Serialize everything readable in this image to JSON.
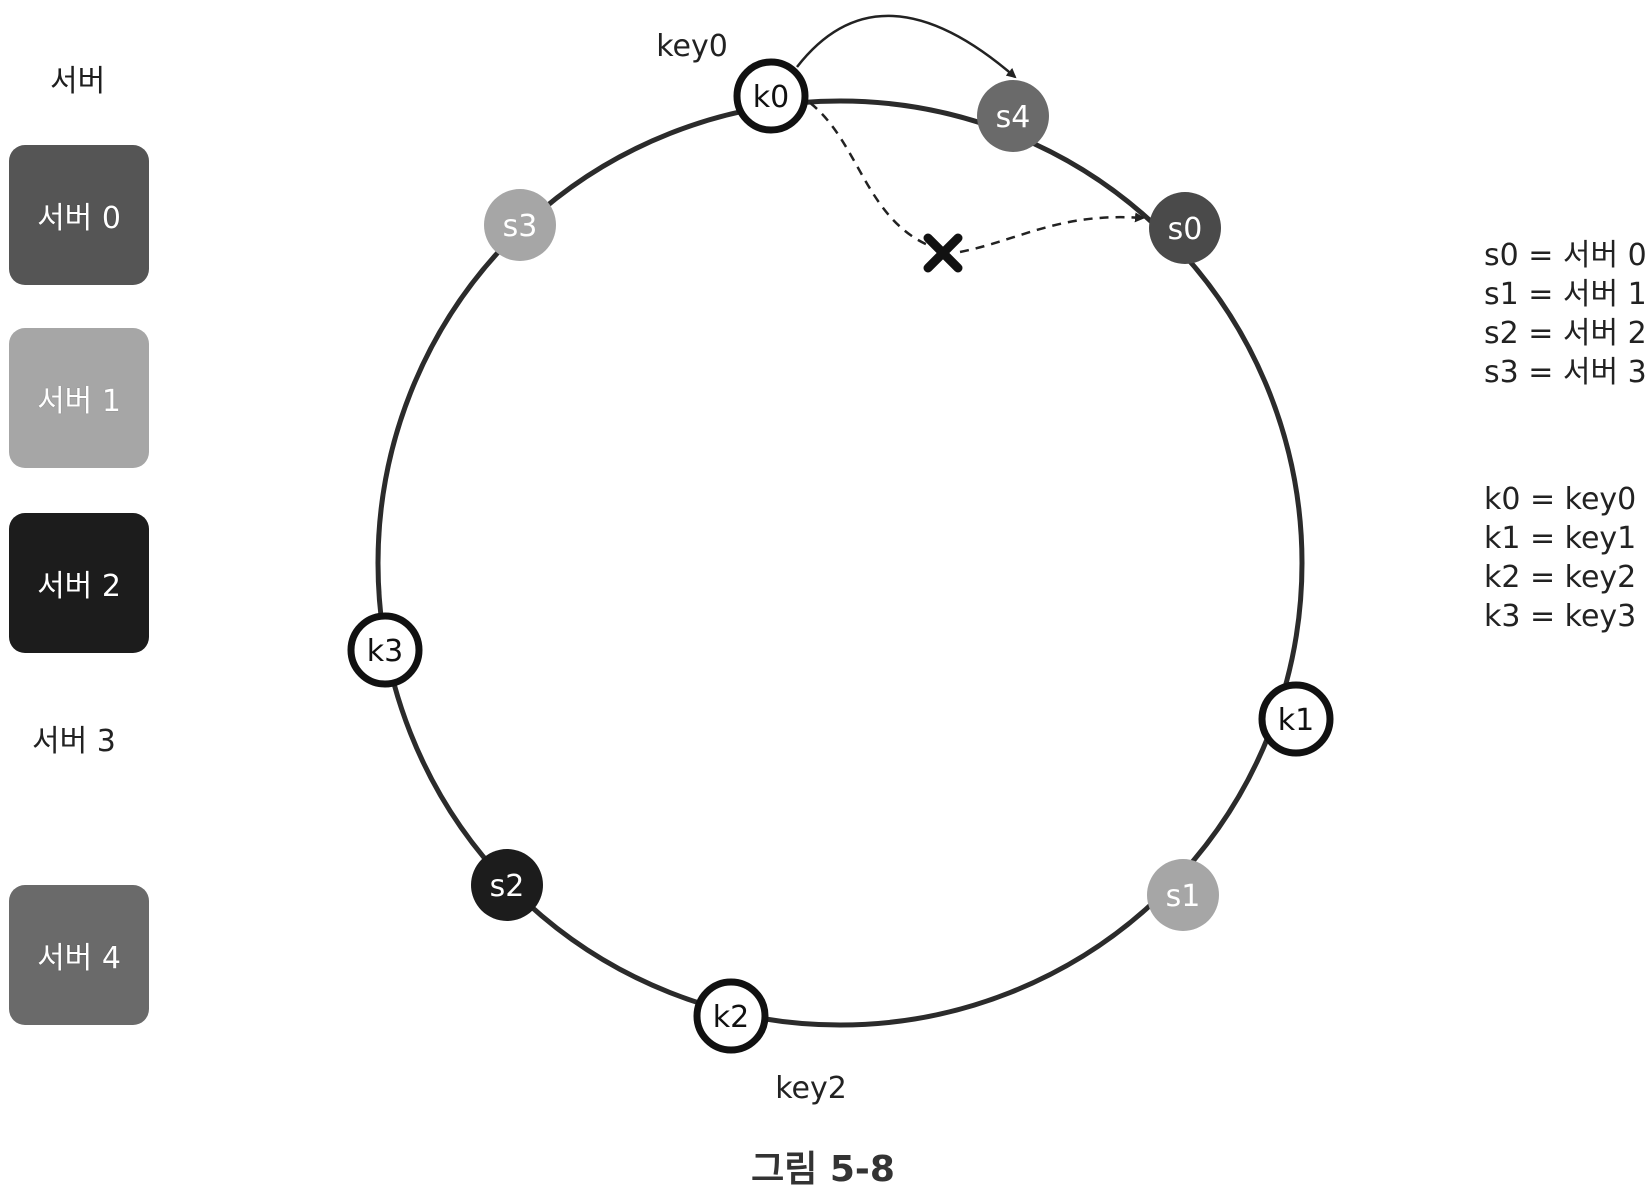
{
  "servers_title": "서버",
  "servers": [
    {
      "label": "서버 0",
      "color": "#555555",
      "shown": "box"
    },
    {
      "label": "서버 1",
      "color": "#a6a6a6",
      "shown": "box"
    },
    {
      "label": "서버 2",
      "color": "#1c1c1c",
      "shown": "box"
    },
    {
      "label": "서버 3",
      "color": "#ffffff",
      "shown": "removed"
    },
    {
      "label": "서버 4",
      "color": "#6a6a6a",
      "shown": "box"
    }
  ],
  "ring": {
    "key0_label": "key0",
    "key2_label": "key2",
    "server_nodes": [
      {
        "id": "s0",
        "label": "s0",
        "color": "#4a4a4a"
      },
      {
        "id": "s1",
        "label": "s1",
        "color": "#a6a6a6"
      },
      {
        "id": "s2",
        "label": "s2",
        "color": "#1c1c1c"
      },
      {
        "id": "s3",
        "label": "s3",
        "color": "#a6a6a6"
      },
      {
        "id": "s4",
        "label": "s4",
        "color": "#6a6a6a"
      }
    ],
    "key_nodes": [
      {
        "id": "k0",
        "label": "k0"
      },
      {
        "id": "k1",
        "label": "k1"
      },
      {
        "id": "k2",
        "label": "k2"
      },
      {
        "id": "k3",
        "label": "k3"
      }
    ],
    "removed_marker": "x-mark"
  },
  "legend_servers": [
    "s0 = 서버 0",
    "s1 = 서버 1",
    "s2 = 서버 2",
    "s3 = 서버 3"
  ],
  "legend_keys": [
    "k0 = key0",
    "k1 = key1",
    "k2 = key2",
    "k3 = key3"
  ],
  "caption": "그림 5-8"
}
